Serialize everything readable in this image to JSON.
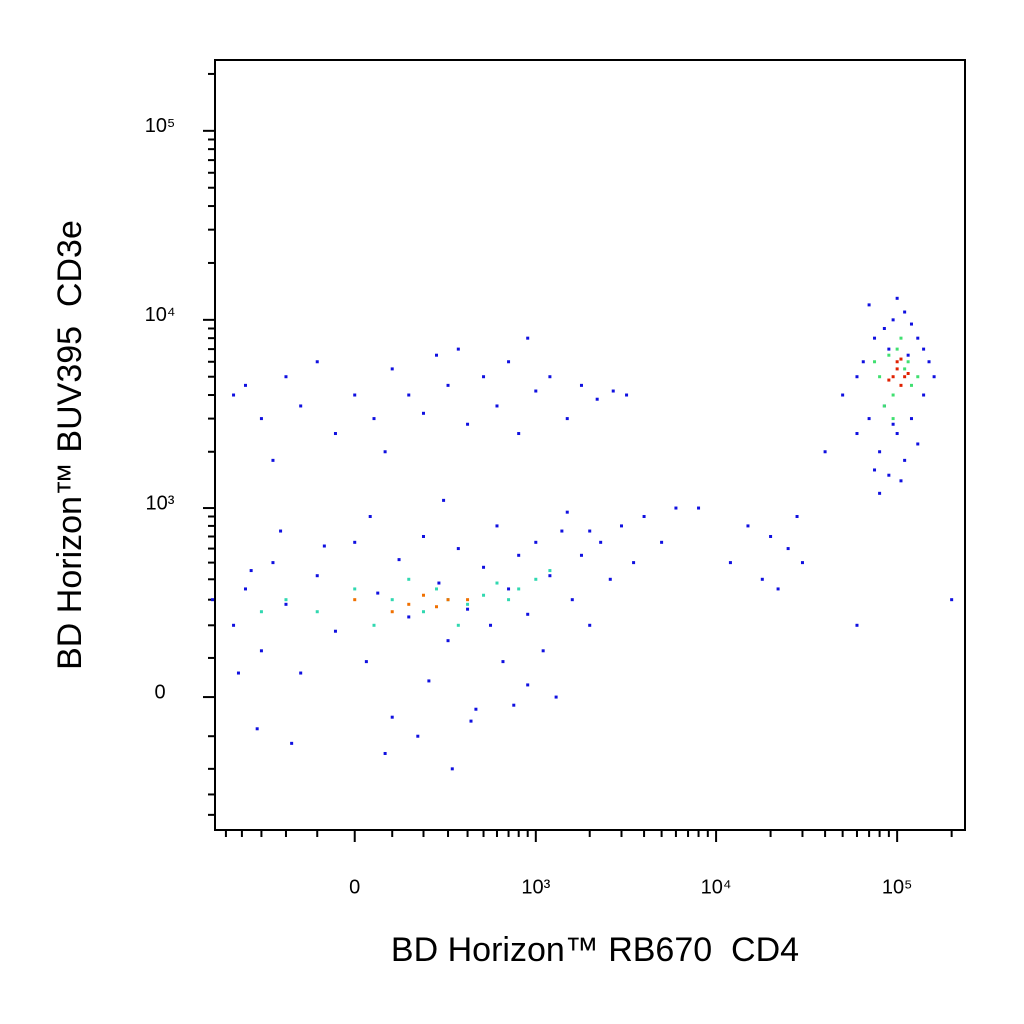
{
  "chart_data": {
    "type": "scatter",
    "x_label": "BD Horizon™ RB670  CD4",
    "y_label": "BD Horizon™ BUV395  CD3e",
    "xscale": "biexponential",
    "yscale": "biexponential",
    "xlim": [
      -580,
      237000
    ],
    "ylim": [
      -490,
      237000
    ],
    "xticks": [
      0,
      {
        "value": 1000,
        "label": "10³"
      },
      {
        "value": 10000,
        "label": "10⁴"
      },
      {
        "value": 100000,
        "label": "10⁵"
      }
    ],
    "yticks": [
      0,
      {
        "value": 1000,
        "label": "10³"
      },
      {
        "value": 10000,
        "label": "10⁴"
      },
      {
        "value": 100000,
        "label": "10⁵"
      }
    ],
    "xminor": [
      -500,
      -400,
      -300,
      -200,
      -100,
      100,
      200,
      300,
      400,
      500,
      600,
      700,
      800,
      900,
      2000,
      3000,
      4000,
      5000,
      6000,
      7000,
      8000,
      9000,
      20000,
      30000,
      40000,
      50000,
      60000,
      70000,
      80000,
      90000,
      200000
    ],
    "yminor": [
      -400,
      -300,
      -200,
      -100,
      100,
      200,
      300,
      400,
      500,
      600,
      700,
      800,
      900,
      2000,
      3000,
      4000,
      5000,
      6000,
      7000,
      8000,
      9000,
      20000,
      30000,
      40000,
      50000,
      60000,
      70000,
      80000,
      90000,
      200000
    ],
    "series": [
      {
        "color": "#1010e0",
        "x": [
          -450,
          -380,
          -300,
          -250,
          -200,
          -150,
          -100,
          -50,
          0,
          30,
          60,
          100,
          120,
          150,
          200,
          220,
          260,
          300,
          350,
          400,
          450,
          500,
          550,
          600,
          650,
          700,
          800,
          900,
          1000,
          1100,
          1200,
          1400,
          1600,
          1800,
          2000,
          2300,
          2600,
          3000,
          3500,
          4000,
          5000,
          6000,
          -420,
          -320,
          -180,
          80,
          180,
          320,
          420,
          750,
          1300,
          -600,
          -220,
          40,
          280,
          1500,
          -350,
          -80,
          900,
          2000
        ],
        "values": [
          200,
          350,
          120,
          500,
          280,
          60,
          420,
          180,
          650,
          90,
          330,
          -50,
          520,
          230,
          700,
          40,
          380,
          150,
          600,
          260,
          -30,
          470,
          200,
          800,
          90,
          350,
          550,
          240,
          650,
          120,
          420,
          750,
          300,
          550,
          200,
          650,
          400,
          800,
          500,
          900,
          650,
          1000,
          60,
          -80,
          -120,
          -150,
          -100,
          -200,
          -60,
          -20,
          0,
          300,
          750,
          900,
          1100,
          950,
          450,
          620,
          30,
          750
        ]
      },
      {
        "color": "#30d8b0",
        "x": [
          -200,
          -100,
          0,
          50,
          100,
          150,
          200,
          250,
          300,
          400,
          500,
          600,
          800,
          1000,
          1200,
          -300,
          350,
          700
        ],
        "values": [
          300,
          250,
          350,
          200,
          300,
          400,
          250,
          350,
          300,
          280,
          320,
          380,
          350,
          400,
          450,
          250,
          200,
          300
        ]
      },
      {
        "color": "#f07000",
        "x": [
          0,
          100,
          150,
          200,
          250,
          300,
          400
        ],
        "values": [
          300,
          250,
          280,
          320,
          270,
          300,
          300
        ]
      },
      {
        "color": "#1010e0",
        "x": [
          -450,
          -380,
          -300,
          -200,
          -150,
          -100,
          -50,
          0,
          50,
          100,
          150,
          200,
          250,
          300,
          400,
          500,
          600,
          700,
          800,
          1000,
          1200,
          1500,
          1800,
          2200,
          2700,
          3200,
          -250,
          80,
          350,
          900
        ],
        "values": [
          4000,
          4500,
          3000,
          5000,
          3500,
          6000,
          2500,
          4000,
          3000,
          5500,
          4000,
          3200,
          6500,
          4500,
          2800,
          5000,
          3500,
          6000,
          2500,
          4200,
          5000,
          3000,
          4500,
          3800,
          4200,
          4000,
          1800,
          2000,
          7000,
          8000
        ]
      },
      {
        "color": "#1010e0",
        "x": [
          50000,
          60000,
          65000,
          70000,
          75000,
          80000,
          85000,
          90000,
          95000,
          100000,
          110000,
          120000,
          130000,
          140000,
          150000,
          160000,
          70000,
          80000,
          90000,
          110000,
          130000,
          60000,
          100000,
          120000,
          85000,
          140000,
          75000,
          95000,
          115000,
          105000
        ],
        "values": [
          4000,
          2500,
          6000,
          3000,
          8000,
          2000,
          9000,
          1500,
          10000,
          2500,
          11000,
          3000,
          8000,
          4000,
          6000,
          5000,
          12000,
          1200,
          7000,
          1800,
          2200,
          5000,
          13000,
          9500,
          3500,
          7000,
          1600,
          2800,
          6500,
          1400
        ]
      },
      {
        "color": "#40e070",
        "x": [
          80000,
          90000,
          95000,
          100000,
          110000,
          120000,
          85000,
          105000,
          115000,
          75000,
          130000,
          95000
        ],
        "values": [
          5000,
          6500,
          4000,
          7000,
          5500,
          4500,
          3500,
          8000,
          6000,
          6000,
          5000,
          3000
        ]
      },
      {
        "color": "#e02000",
        "x": [
          95000,
          100000,
          105000,
          110000,
          100000,
          90000,
          115000,
          105000
        ],
        "values": [
          5000,
          5500,
          4500,
          5000,
          6000,
          4800,
          5200,
          6200
        ]
      },
      {
        "color": "#1010e0",
        "x": [
          12000,
          15000,
          18000,
          20000,
          22000,
          25000,
          28000,
          30000,
          40000,
          60000,
          200000,
          8000
        ],
        "values": [
          500,
          800,
          400,
          700,
          350,
          600,
          900,
          500,
          2000,
          200,
          300,
          1000
        ]
      }
    ]
  }
}
